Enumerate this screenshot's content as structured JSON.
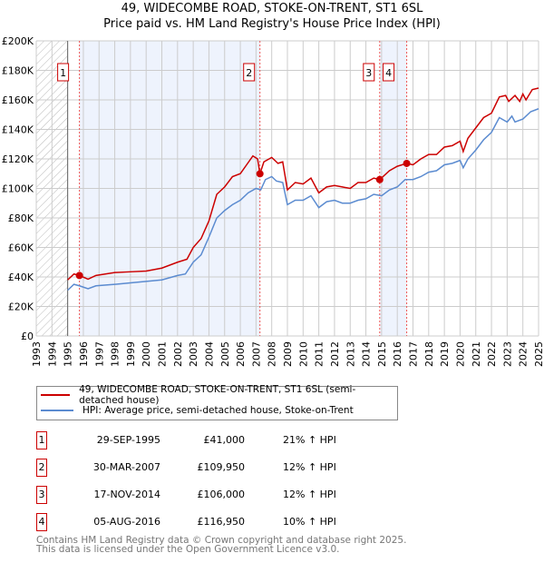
{
  "chart_data": {
    "type": "line",
    "title": "49, WIDECOMBE ROAD, STOKE-ON-TRENT, ST1 6SL",
    "subtitle": "Price paid vs. HM Land Registry's House Price Index (HPI)",
    "xlim": [
      1993,
      2025
    ],
    "ylim": [
      0,
      200000
    ],
    "x_ticks": [
      "1993",
      "1994",
      "1995",
      "1996",
      "1997",
      "1998",
      "1999",
      "2000",
      "2001",
      "2002",
      "2003",
      "2004",
      "2005",
      "2006",
      "2007",
      "2008",
      "2009",
      "2010",
      "2011",
      "2012",
      "2013",
      "2014",
      "2015",
      "2016",
      "2017",
      "2018",
      "2019",
      "2020",
      "2021",
      "2022",
      "2023",
      "2024",
      "2025"
    ],
    "y_ticks": [
      "£0",
      "£20K",
      "£40K",
      "£60K",
      "£80K",
      "£100K",
      "£120K",
      "£140K",
      "£160K",
      "£180K",
      "£200K"
    ],
    "grid": true,
    "legend": "bottom",
    "series": [
      {
        "name": "49, WIDECOMBE ROAD, STOKE-ON-TRENT, ST1 6SL (semi-detached house)",
        "color": "#cc0000",
        "points": [
          [
            1995,
            38000
          ],
          [
            1995.4,
            42000
          ],
          [
            1995.75,
            41000
          ],
          [
            1996.3,
            38500
          ],
          [
            1996.8,
            41000
          ],
          [
            1998,
            43000
          ],
          [
            1999,
            43500
          ],
          [
            2000,
            44000
          ],
          [
            2001,
            46000
          ],
          [
            2002,
            50000
          ],
          [
            2002.6,
            52000
          ],
          [
            2003,
            60000
          ],
          [
            2003.5,
            66000
          ],
          [
            2004,
            78000
          ],
          [
            2004.5,
            96000
          ],
          [
            2005,
            101000
          ],
          [
            2005.5,
            108000
          ],
          [
            2006,
            110000
          ],
          [
            2006.4,
            116000
          ],
          [
            2006.8,
            122000
          ],
          [
            2007.1,
            120000
          ],
          [
            2007.25,
            109950
          ],
          [
            2007.5,
            118000
          ],
          [
            2008,
            121000
          ],
          [
            2008.4,
            117000
          ],
          [
            2008.7,
            118000
          ],
          [
            2009,
            99000
          ],
          [
            2009.5,
            104000
          ],
          [
            2010,
            103000
          ],
          [
            2010.5,
            107000
          ],
          [
            2011,
            97000
          ],
          [
            2011.5,
            101000
          ],
          [
            2012,
            102000
          ],
          [
            2012.5,
            101000
          ],
          [
            2013,
            100000
          ],
          [
            2013.5,
            104000
          ],
          [
            2014,
            104000
          ],
          [
            2014.5,
            107000
          ],
          [
            2014.88,
            106000
          ],
          [
            2015.5,
            112000
          ],
          [
            2016,
            115000
          ],
          [
            2016.6,
            116950
          ],
          [
            2017,
            116000
          ],
          [
            2017.5,
            120000
          ],
          [
            2018,
            123000
          ],
          [
            2018.5,
            123000
          ],
          [
            2019,
            128000
          ],
          [
            2019.5,
            129000
          ],
          [
            2020,
            132000
          ],
          [
            2020.2,
            125000
          ],
          [
            2020.5,
            134000
          ],
          [
            2021,
            141000
          ],
          [
            2021.5,
            148000
          ],
          [
            2022,
            151000
          ],
          [
            2022.5,
            162000
          ],
          [
            2022.9,
            163000
          ],
          [
            2023.1,
            159000
          ],
          [
            2023.5,
            163000
          ],
          [
            2023.8,
            159000
          ],
          [
            2024,
            164000
          ],
          [
            2024.2,
            160000
          ],
          [
            2024.6,
            167000
          ],
          [
            2025,
            168000
          ]
        ]
      },
      {
        "name": "HPI: Average price, semi-detached house, Stoke-on-Trent",
        "color": "#5b8bd0",
        "points": [
          [
            1995,
            31000
          ],
          [
            1995.4,
            35000
          ],
          [
            1995.75,
            34000
          ],
          [
            1996.3,
            32000
          ],
          [
            1996.8,
            34000
          ],
          [
            1998,
            35000
          ],
          [
            1999,
            36000
          ],
          [
            2000,
            37000
          ],
          [
            2001,
            38000
          ],
          [
            2002,
            41000
          ],
          [
            2002.5,
            42000
          ],
          [
            2003,
            50000
          ],
          [
            2003.5,
            55000
          ],
          [
            2004,
            67000
          ],
          [
            2004.5,
            80000
          ],
          [
            2005,
            85000
          ],
          [
            2005.5,
            89000
          ],
          [
            2006,
            92000
          ],
          [
            2006.5,
            97000
          ],
          [
            2007,
            100000
          ],
          [
            2007.3,
            99000
          ],
          [
            2007.6,
            106000
          ],
          [
            2008,
            108000
          ],
          [
            2008.3,
            105000
          ],
          [
            2008.7,
            104000
          ],
          [
            2009,
            89000
          ],
          [
            2009.5,
            92000
          ],
          [
            2010,
            92000
          ],
          [
            2010.5,
            95000
          ],
          [
            2011,
            87000
          ],
          [
            2011.5,
            91000
          ],
          [
            2012,
            92000
          ],
          [
            2012.5,
            90000
          ],
          [
            2013,
            90000
          ],
          [
            2013.5,
            92000
          ],
          [
            2014,
            93000
          ],
          [
            2014.5,
            96000
          ],
          [
            2015,
            95000
          ],
          [
            2015.5,
            99000
          ],
          [
            2016,
            101000
          ],
          [
            2016.5,
            106000
          ],
          [
            2017,
            106000
          ],
          [
            2017.5,
            108000
          ],
          [
            2018,
            111000
          ],
          [
            2018.5,
            112000
          ],
          [
            2019,
            116000
          ],
          [
            2019.5,
            117000
          ],
          [
            2020,
            119000
          ],
          [
            2020.2,
            114000
          ],
          [
            2020.5,
            120000
          ],
          [
            2021,
            126000
          ],
          [
            2021.5,
            133000
          ],
          [
            2022,
            138000
          ],
          [
            2022.5,
            148000
          ],
          [
            2023,
            145000
          ],
          [
            2023.3,
            149000
          ],
          [
            2023.5,
            145000
          ],
          [
            2024,
            147000
          ],
          [
            2024.5,
            152000
          ],
          [
            2025,
            154000
          ]
        ]
      }
    ],
    "sales": [
      {
        "label": "1",
        "x": 1995.75,
        "y": 41000
      },
      {
        "label": "2",
        "x": 2007.25,
        "y": 109950
      },
      {
        "label": "3",
        "x": 2014.88,
        "y": 106000
      },
      {
        "label": "4",
        "x": 2016.6,
        "y": 116950
      }
    ],
    "shaded_ranges": [
      [
        1995.75,
        2007.25
      ],
      [
        2014.88,
        2016.6
      ]
    ],
    "hatched_range": [
      1993,
      1995
    ]
  },
  "legend": {
    "property": "49, WIDECOMBE ROAD, STOKE-ON-TRENT, ST1 6SL (semi-detached house)",
    "hpi": "HPI: Average price, semi-detached house, Stoke-on-Trent"
  },
  "transactions": [
    {
      "num": "1",
      "date": "29-SEP-1995",
      "price": "£41,000",
      "hpi": "21% ↑ HPI"
    },
    {
      "num": "2",
      "date": "30-MAR-2007",
      "price": "£109,950",
      "hpi": "12% ↑ HPI"
    },
    {
      "num": "3",
      "date": "17-NOV-2014",
      "price": "£106,000",
      "hpi": "12% ↑ HPI"
    },
    {
      "num": "4",
      "date": "05-AUG-2016",
      "price": "£116,950",
      "hpi": "10% ↑ HPI"
    }
  ],
  "footer": {
    "line1": "Contains HM Land Registry data © Crown copyright and database right 2025.",
    "line2": "This data is licensed under the Open Government Licence v3.0."
  }
}
